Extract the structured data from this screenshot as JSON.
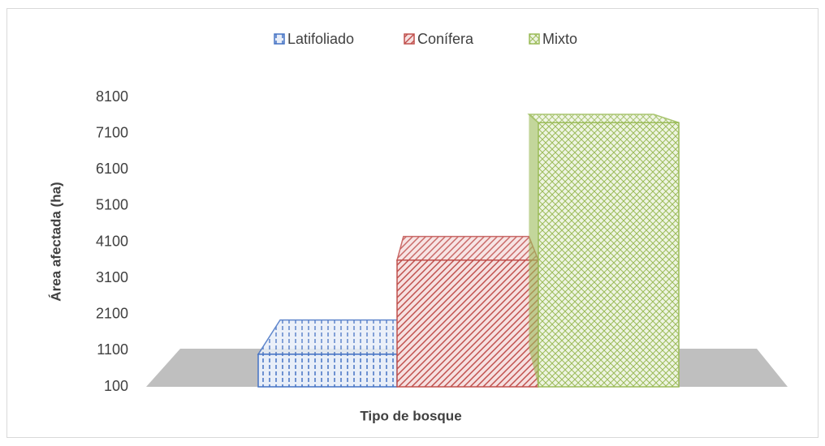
{
  "chart_data": {
    "type": "bar3d",
    "x_label": "Tipo de bosque",
    "y_label": "Área afectada (ha)",
    "categories": [
      null
    ],
    "series": [
      {
        "name": "Latifoliado",
        "color": "#4472c4",
        "values": [
          1000
        ]
      },
      {
        "name": "Conífera",
        "color": "#c0504d",
        "values": [
          3600
        ]
      },
      {
        "name": "Mixto",
        "color": "#9bbb59",
        "values": [
          7400
        ]
      }
    ],
    "ylim": [
      100,
      8100
    ],
    "yticks": [
      100,
      1100,
      2100,
      3100,
      4100,
      5100,
      6100,
      7100,
      8100
    ],
    "legend": "top"
  }
}
